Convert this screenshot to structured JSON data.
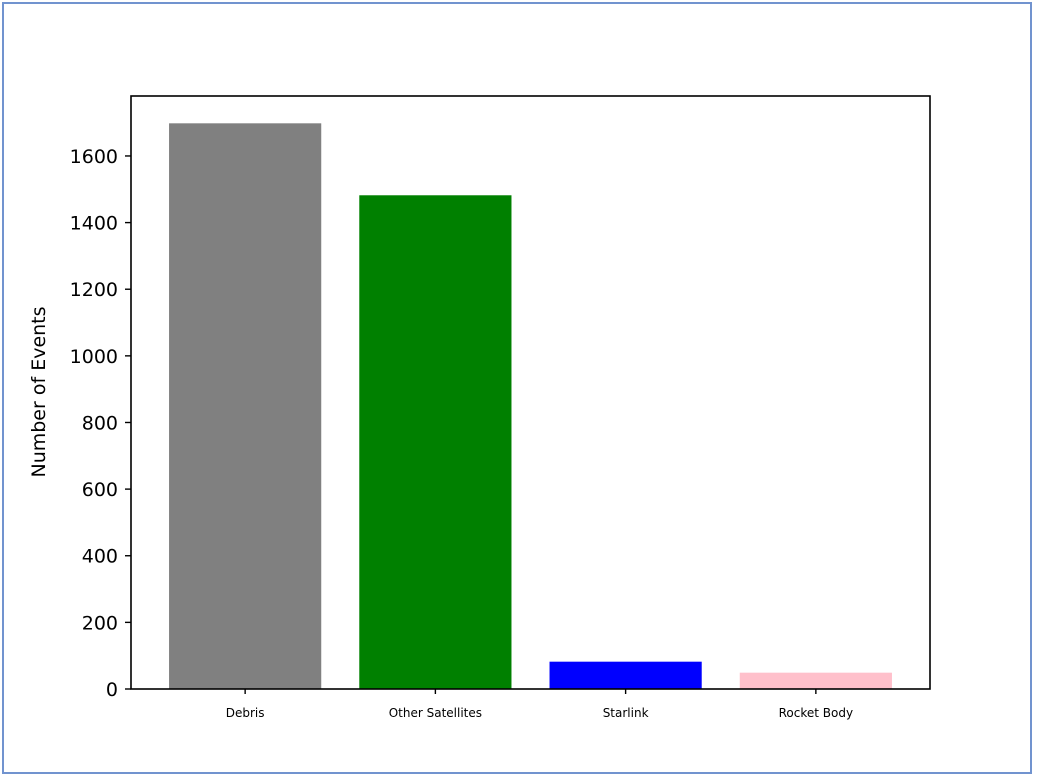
{
  "chart_data": {
    "type": "bar",
    "title": "",
    "xlabel": "",
    "ylabel": "Number of Events",
    "categories": [
      "Debris",
      "Other Satellites",
      "Starlink",
      "Rocket Body"
    ],
    "values": [
      1698,
      1482,
      82,
      49
    ],
    "colors": [
      "#808080",
      "#008000",
      "#0000ff",
      "#ffc0cb"
    ],
    "ylim": [
      0,
      1780
    ],
    "yticks": [
      0,
      200,
      400,
      600,
      800,
      1000,
      1200,
      1400,
      1600
    ],
    "grid": false,
    "legend": "none"
  },
  "frame_color": "#7193cf"
}
